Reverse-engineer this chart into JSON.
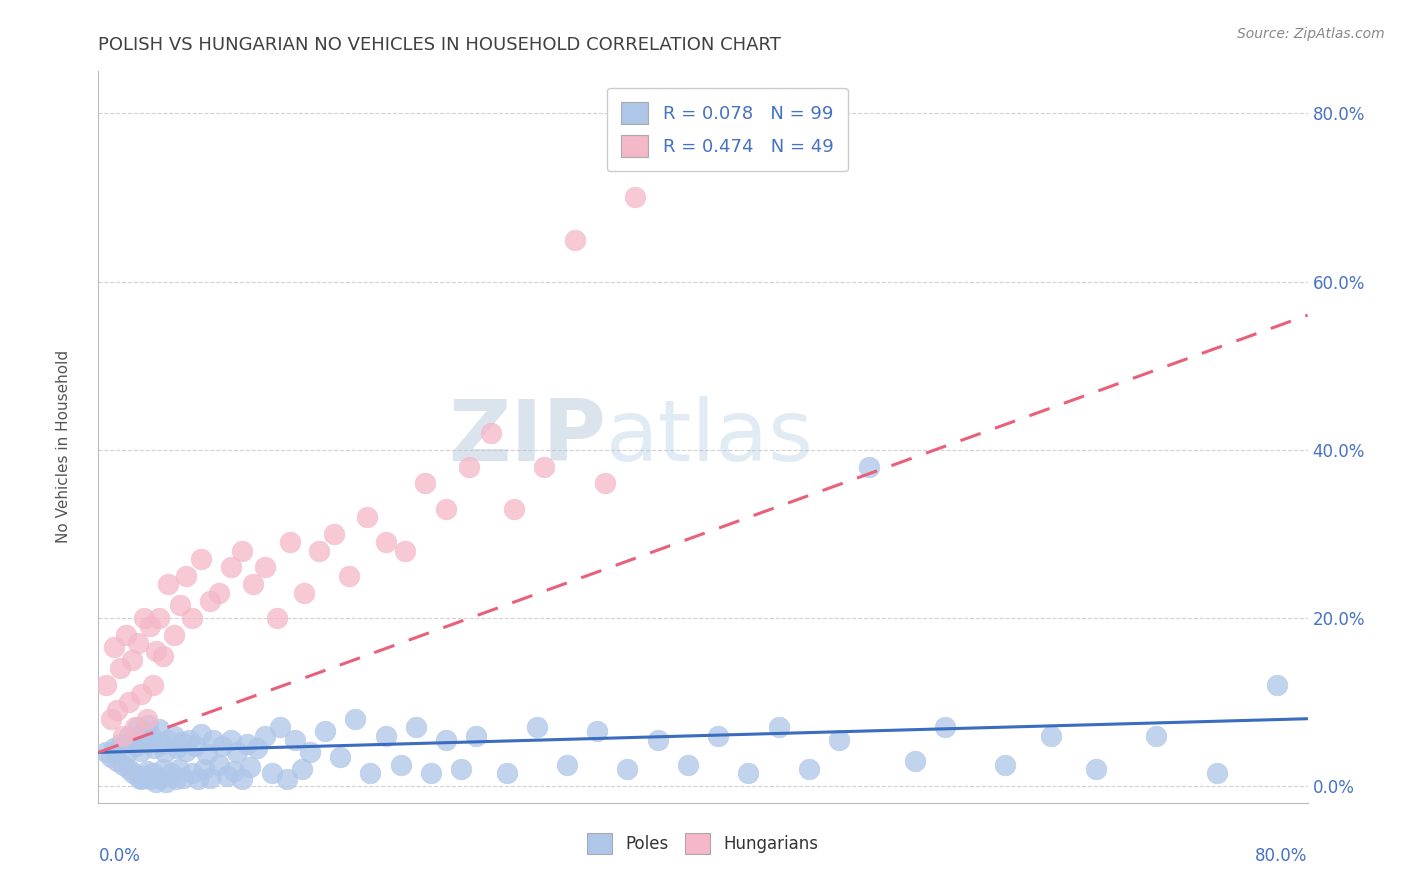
{
  "title": "POLISH VS HUNGARIAN NO VEHICLES IN HOUSEHOLD CORRELATION CHART",
  "source": "Source: ZipAtlas.com",
  "ylabel": "No Vehicles in Household",
  "xlim": [
    0.0,
    0.8
  ],
  "ylim": [
    -0.02,
    0.85
  ],
  "yticks": [
    0.0,
    0.2,
    0.4,
    0.6,
    0.8
  ],
  "ytick_labels": [
    "0.0%",
    "20.0%",
    "40.0%",
    "60.0%",
    "80.0%"
  ],
  "legend_r_poles": "R = 0.078",
  "legend_n_poles": "N = 99",
  "legend_r_hung": "R = 0.474",
  "legend_n_hung": "N = 49",
  "poles_color": "#aec6e8",
  "hung_color": "#f4b8c8",
  "poles_line_color": "#3a6cbf",
  "hung_line_color": "#e8607a",
  "watermark_color": "#ccd8e8",
  "title_color": "#404040",
  "tick_color": "#4472c4",
  "ylabel_color": "#555555",
  "grid_color": "#cccccc",
  "poles_x": [
    0.005,
    0.008,
    0.01,
    0.012,
    0.015,
    0.016,
    0.018,
    0.02,
    0.02,
    0.022,
    0.023,
    0.025,
    0.026,
    0.027,
    0.028,
    0.028,
    0.03,
    0.03,
    0.031,
    0.032,
    0.033,
    0.034,
    0.035,
    0.036,
    0.037,
    0.038,
    0.04,
    0.041,
    0.042,
    0.043,
    0.044,
    0.045,
    0.046,
    0.048,
    0.05,
    0.051,
    0.052,
    0.053,
    0.055,
    0.056,
    0.058,
    0.06,
    0.062,
    0.064,
    0.066,
    0.068,
    0.07,
    0.072,
    0.074,
    0.076,
    0.08,
    0.082,
    0.085,
    0.088,
    0.09,
    0.092,
    0.095,
    0.098,
    0.1,
    0.105,
    0.11,
    0.115,
    0.12,
    0.125,
    0.13,
    0.135,
    0.14,
    0.15,
    0.16,
    0.17,
    0.18,
    0.19,
    0.2,
    0.21,
    0.22,
    0.23,
    0.24,
    0.25,
    0.27,
    0.29,
    0.31,
    0.33,
    0.35,
    0.37,
    0.39,
    0.41,
    0.43,
    0.45,
    0.47,
    0.49,
    0.51,
    0.54,
    0.56,
    0.6,
    0.63,
    0.66,
    0.7,
    0.74,
    0.78
  ],
  "poles_y": [
    0.04,
    0.035,
    0.045,
    0.03,
    0.05,
    0.025,
    0.038,
    0.06,
    0.02,
    0.055,
    0.015,
    0.048,
    0.07,
    0.01,
    0.042,
    0.008,
    0.065,
    0.012,
    0.055,
    0.018,
    0.072,
    0.008,
    0.06,
    0.015,
    0.045,
    0.005,
    0.068,
    0.01,
    0.05,
    0.02,
    0.04,
    0.005,
    0.055,
    0.015,
    0.06,
    0.008,
    0.045,
    0.02,
    0.052,
    0.01,
    0.042,
    0.055,
    0.015,
    0.048,
    0.008,
    0.062,
    0.02,
    0.038,
    0.01,
    0.055,
    0.025,
    0.048,
    0.012,
    0.055,
    0.018,
    0.04,
    0.008,
    0.05,
    0.022,
    0.045,
    0.06,
    0.015,
    0.07,
    0.008,
    0.055,
    0.02,
    0.04,
    0.065,
    0.035,
    0.08,
    0.015,
    0.06,
    0.025,
    0.07,
    0.015,
    0.055,
    0.02,
    0.06,
    0.015,
    0.07,
    0.025,
    0.065,
    0.02,
    0.055,
    0.025,
    0.06,
    0.015,
    0.07,
    0.02,
    0.055,
    0.38,
    0.03,
    0.07,
    0.025,
    0.06,
    0.02,
    0.06,
    0.015,
    0.12
  ],
  "hung_x": [
    0.005,
    0.008,
    0.01,
    0.012,
    0.014,
    0.016,
    0.018,
    0.02,
    0.022,
    0.024,
    0.026,
    0.028,
    0.03,
    0.032,
    0.034,
    0.036,
    0.038,
    0.04,
    0.043,
    0.046,
    0.05,
    0.054,
    0.058,
    0.062,
    0.068,
    0.074,
    0.08,
    0.088,
    0.095,
    0.102,
    0.11,
    0.118,
    0.127,
    0.136,
    0.146,
    0.156,
    0.166,
    0.178,
    0.19,
    0.203,
    0.216,
    0.23,
    0.245,
    0.26,
    0.275,
    0.295,
    0.315,
    0.335,
    0.355
  ],
  "hung_y": [
    0.12,
    0.08,
    0.165,
    0.09,
    0.14,
    0.06,
    0.18,
    0.1,
    0.15,
    0.07,
    0.17,
    0.11,
    0.2,
    0.08,
    0.19,
    0.12,
    0.16,
    0.2,
    0.155,
    0.24,
    0.18,
    0.215,
    0.25,
    0.2,
    0.27,
    0.22,
    0.23,
    0.26,
    0.28,
    0.24,
    0.26,
    0.2,
    0.29,
    0.23,
    0.28,
    0.3,
    0.25,
    0.32,
    0.29,
    0.28,
    0.36,
    0.33,
    0.38,
    0.42,
    0.33,
    0.38,
    0.65,
    0.36,
    0.7
  ],
  "poles_line_x": [
    0.0,
    0.8
  ],
  "poles_line_y": [
    0.04,
    0.08
  ],
  "hung_line_x": [
    0.0,
    0.8
  ],
  "hung_line_y": [
    0.04,
    0.56
  ]
}
